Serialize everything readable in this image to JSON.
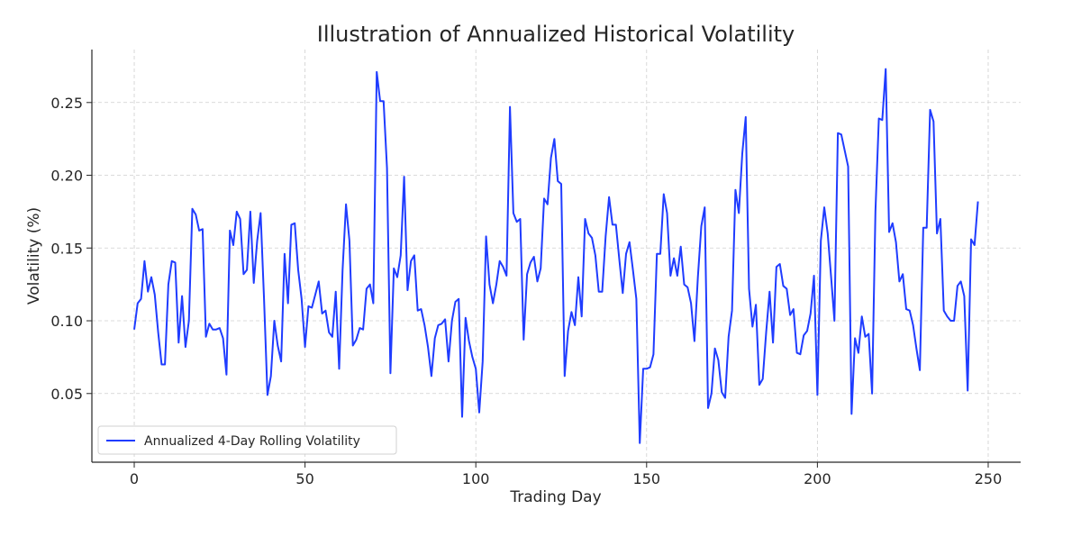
{
  "chart_data": {
    "type": "line",
    "title": "Illustration of Annualized Historical Volatility",
    "xlabel": "Trading Day",
    "ylabel": "Volatility (%)",
    "xlim": [
      -12.4,
      259.5
    ],
    "ylim": [
      0.0028,
      0.2864
    ],
    "xticks": [
      0,
      50,
      100,
      150,
      200,
      250
    ],
    "yticks": [
      0.05,
      0.1,
      0.15,
      0.2,
      0.25
    ],
    "ytick_labels": [
      "0.05",
      "0.10",
      "0.15",
      "0.20",
      "0.25"
    ],
    "grid": true,
    "legend_position": "lower-left",
    "series": [
      {
        "name": "Annualized 4-Day Rolling Volatility",
        "color": "#1f3cff",
        "x_start": 0,
        "values": [
          0.094,
          0.112,
          0.115,
          0.141,
          0.12,
          0.13,
          0.118,
          0.092,
          0.07,
          0.07,
          0.125,
          0.141,
          0.14,
          0.085,
          0.117,
          0.082,
          0.1,
          0.177,
          0.173,
          0.162,
          0.163,
          0.089,
          0.098,
          0.094,
          0.094,
          0.095,
          0.088,
          0.063,
          0.162,
          0.152,
          0.175,
          0.17,
          0.132,
          0.135,
          0.175,
          0.126,
          0.155,
          0.174,
          0.115,
          0.049,
          0.062,
          0.1,
          0.083,
          0.072,
          0.146,
          0.112,
          0.166,
          0.167,
          0.135,
          0.115,
          0.082,
          0.11,
          0.109,
          0.118,
          0.127,
          0.105,
          0.107,
          0.092,
          0.089,
          0.12,
          0.067,
          0.135,
          0.18,
          0.155,
          0.083,
          0.087,
          0.095,
          0.094,
          0.122,
          0.125,
          0.112,
          0.271,
          0.251,
          0.251,
          0.205,
          0.064,
          0.136,
          0.13,
          0.145,
          0.199,
          0.121,
          0.141,
          0.145,
          0.107,
          0.108,
          0.097,
          0.082,
          0.062,
          0.088,
          0.097,
          0.098,
          0.101,
          0.072,
          0.1,
          0.113,
          0.115,
          0.034,
          0.102,
          0.086,
          0.075,
          0.067,
          0.037,
          0.072,
          0.158,
          0.125,
          0.112,
          0.125,
          0.141,
          0.137,
          0.131,
          0.247,
          0.174,
          0.168,
          0.17,
          0.087,
          0.132,
          0.14,
          0.144,
          0.127,
          0.136,
          0.184,
          0.18,
          0.212,
          0.225,
          0.196,
          0.194,
          0.062,
          0.093,
          0.106,
          0.097,
          0.13,
          0.103,
          0.17,
          0.16,
          0.157,
          0.145,
          0.12,
          0.12,
          0.158,
          0.185,
          0.166,
          0.166,
          0.142,
          0.119,
          0.146,
          0.154,
          0.135,
          0.115,
          0.016,
          0.067,
          0.067,
          0.068,
          0.077,
          0.146,
          0.146,
          0.187,
          0.174,
          0.131,
          0.143,
          0.131,
          0.151,
          0.125,
          0.123,
          0.112,
          0.086,
          0.13,
          0.165,
          0.178,
          0.04,
          0.05,
          0.081,
          0.073,
          0.051,
          0.047,
          0.089,
          0.107,
          0.19,
          0.174,
          0.215,
          0.24,
          0.122,
          0.096,
          0.111,
          0.056,
          0.06,
          0.092,
          0.12,
          0.085,
          0.137,
          0.139,
          0.124,
          0.122,
          0.104,
          0.108,
          0.078,
          0.077,
          0.09,
          0.093,
          0.105,
          0.131,
          0.049,
          0.155,
          0.178,
          0.16,
          0.13,
          0.1,
          0.229,
          0.228,
          0.217,
          0.206,
          0.036,
          0.088,
          0.078,
          0.103,
          0.089,
          0.091,
          0.05,
          0.175,
          0.239,
          0.238,
          0.273,
          0.161,
          0.167,
          0.154,
          0.127,
          0.132,
          0.108,
          0.107,
          0.097,
          0.081,
          0.066,
          0.164,
          0.164,
          0.245,
          0.237,
          0.16,
          0.17,
          0.107,
          0.103,
          0.1,
          0.1,
          0.124,
          0.127,
          0.117,
          0.052,
          0.156,
          0.152,
          0.182
        ]
      }
    ]
  }
}
